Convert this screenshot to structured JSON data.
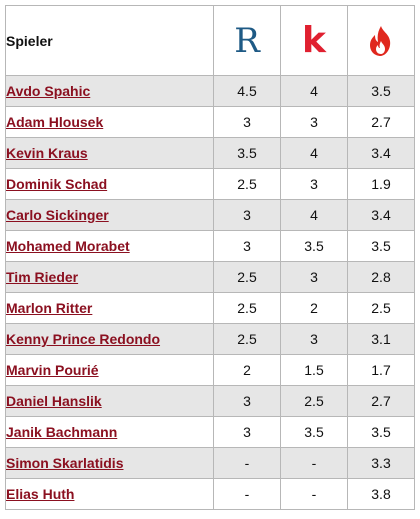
{
  "header": {
    "player_label": "Spieler",
    "sources": [
      {
        "logo_text": "R",
        "icon": "r-logo-icon",
        "color": "#1e5a85"
      },
      {
        "logo_text": "k",
        "icon": "k-logo-icon",
        "color": "#e02030"
      },
      {
        "icon": "flame-icon",
        "color": "#e0281e"
      }
    ]
  },
  "rows": [
    {
      "name": "Avdo Spahic",
      "values": [
        "4.5",
        "4",
        "3.5"
      ]
    },
    {
      "name": "Adam Hlousek",
      "values": [
        "3",
        "3",
        "2.7"
      ]
    },
    {
      "name": "Kevin Kraus",
      "values": [
        "3.5",
        "4",
        "3.4"
      ]
    },
    {
      "name": "Dominik Schad",
      "values": [
        "2.5",
        "3",
        "1.9"
      ]
    },
    {
      "name": "Carlo Sickinger",
      "values": [
        "3",
        "4",
        "3.4"
      ]
    },
    {
      "name": "Mohamed Morabet",
      "values": [
        "3",
        "3.5",
        "3.5"
      ]
    },
    {
      "name": "Tim Rieder",
      "values": [
        "2.5",
        "3",
        "2.8"
      ]
    },
    {
      "name": "Marlon Ritter",
      "values": [
        "2.5",
        "2",
        "2.5"
      ]
    },
    {
      "name": "Kenny Prince Redondo",
      "values": [
        "2.5",
        "3",
        "3.1"
      ]
    },
    {
      "name": "Marvin Pourié",
      "values": [
        "2",
        "1.5",
        "1.7"
      ]
    },
    {
      "name": "Daniel Hanslik",
      "values": [
        "3",
        "2.5",
        "2.7"
      ]
    },
    {
      "name": "Janik Bachmann",
      "values": [
        "3",
        "3.5",
        "3.5"
      ]
    },
    {
      "name": "Simon Skarlatidis",
      "values": [
        "-",
        "-",
        "3.3"
      ]
    },
    {
      "name": "Elias Huth",
      "values": [
        "-",
        "-",
        "3.8"
      ]
    }
  ]
}
